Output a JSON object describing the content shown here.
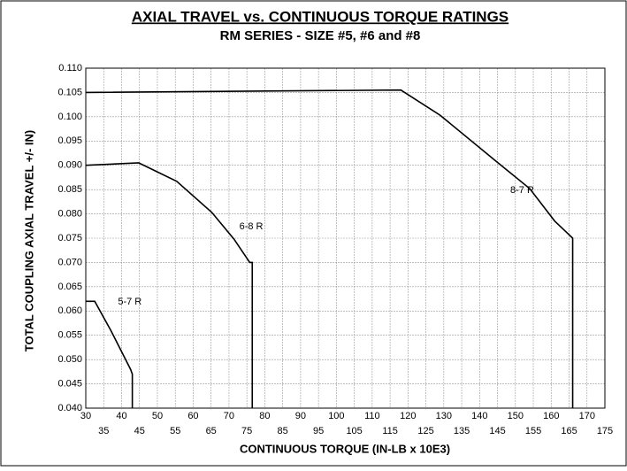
{
  "chart_data": {
    "type": "line",
    "title": "AXIAL TRAVEL vs. CONTINUOUS TORQUE RATINGS",
    "subtitle": "RM SERIES - SIZE #5, #6 and #8",
    "x_label": "CONTINUOUS TORQUE (IN-LB x 10E3)",
    "y_label": "TOTAL COUPLING AXIAL TRAVEL +/- IN)",
    "xlim": [
      30,
      175
    ],
    "xticks": [
      30,
      35,
      40,
      45,
      50,
      55,
      60,
      65,
      70,
      75,
      80,
      85,
      90,
      95,
      100,
      105,
      110,
      115,
      120,
      125,
      130,
      135,
      140,
      145,
      150,
      155,
      160,
      165,
      170,
      175
    ],
    "ylim": [
      0.04,
      0.11
    ],
    "yticks": [
      {
        "value": 0.04,
        "label": "0.040"
      },
      {
        "value": 0.045,
        "label": "0.045"
      },
      {
        "value": 0.05,
        "label": "0.050"
      },
      {
        "value": 0.055,
        "label": "0.055"
      },
      {
        "value": 0.06,
        "label": "0.060"
      },
      {
        "value": 0.065,
        "label": "0.065"
      },
      {
        "value": 0.07,
        "label": "0.070"
      },
      {
        "value": 0.075,
        "label": "0.075"
      },
      {
        "value": 0.08,
        "label": "0.080"
      },
      {
        "value": 0.085,
        "label": "0.085"
      },
      {
        "value": 0.09,
        "label": "0.090"
      },
      {
        "value": 0.095,
        "label": "0.095"
      },
      {
        "value": 0.1,
        "label": "0.100"
      },
      {
        "value": 0.105,
        "label": "0.105"
      },
      {
        "value": 0.11,
        "label": "0.110"
      }
    ],
    "grid": true,
    "series": [
      {
        "name": "5-7 R",
        "color": "#000000",
        "x": [
          30,
          32.5,
          37,
          42.5,
          43,
          43
        ],
        "values": [
          0.062,
          0.062,
          0.056,
          0.048,
          0.047,
          0.04
        ]
      },
      {
        "name": "6-8 R",
        "color": "#000000",
        "x": [
          30,
          44.8,
          55.4,
          65.2,
          71.4,
          75.8,
          76.5,
          76.5
        ],
        "values": [
          0.09,
          0.0905,
          0.0867,
          0.0803,
          0.0748,
          0.07,
          0.07,
          0.04
        ]
      },
      {
        "name": "8-7 R",
        "color": "#000000",
        "x": [
          30,
          118,
          129,
          144,
          154,
          161,
          166,
          166
        ],
        "values": [
          0.105,
          0.1055,
          0.1003,
          0.0912,
          0.0852,
          0.0785,
          0.075,
          0.04
        ]
      }
    ]
  }
}
